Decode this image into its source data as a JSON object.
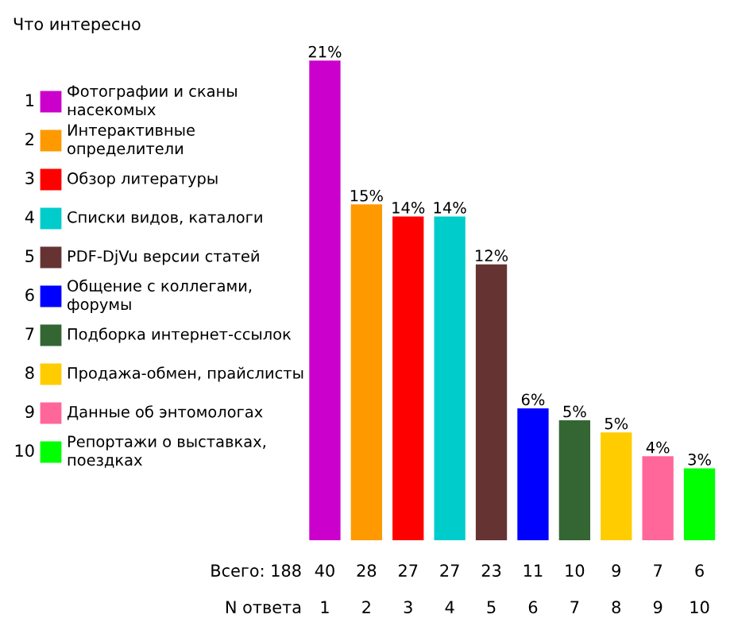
{
  "chart_data": {
    "type": "bar",
    "title": "Что интересно",
    "categories": [
      "1",
      "2",
      "3",
      "4",
      "5",
      "6",
      "7",
      "8",
      "9",
      "10"
    ],
    "series": [
      {
        "name": "Фотографии и сканы\nнасекомых",
        "color": "#cc00cc",
        "values": [
          40,
          null,
          null,
          null,
          null,
          null,
          null,
          null,
          null,
          null
        ]
      },
      {
        "name": "Интерактивные\nопределители",
        "color": "#ff9900",
        "values": [
          null,
          28,
          null,
          null,
          null,
          null,
          null,
          null,
          null,
          null
        ]
      },
      {
        "name": "Обзор литературы",
        "color": "#ff0000",
        "values": [
          null,
          null,
          27,
          null,
          null,
          null,
          null,
          null,
          null,
          null
        ]
      },
      {
        "name": "Списки видов, каталоги",
        "color": "#00cccc",
        "values": [
          null,
          null,
          null,
          27,
          null,
          null,
          null,
          null,
          null,
          null
        ]
      },
      {
        "name": "PDF-DjVu версии статей",
        "color": "#663333",
        "values": [
          null,
          null,
          null,
          null,
          23,
          null,
          null,
          null,
          null,
          null
        ]
      },
      {
        "name": "Общение с коллегами,\nфорумы",
        "color": "#0000ff",
        "values": [
          null,
          null,
          null,
          null,
          null,
          11,
          null,
          null,
          null,
          null
        ]
      },
      {
        "name": "Подборка интернет-ссылок",
        "color": "#336633",
        "values": [
          null,
          null,
          null,
          null,
          null,
          null,
          10,
          null,
          null,
          null
        ]
      },
      {
        "name": "Продажа-обмен, прайслисты",
        "color": "#ffcc00",
        "values": [
          null,
          null,
          null,
          null,
          null,
          null,
          null,
          9,
          null,
          null
        ]
      },
      {
        "name": "Данные об энтомологах",
        "color": "#ff6699",
        "values": [
          null,
          null,
          null,
          null,
          null,
          null,
          null,
          null,
          7,
          null
        ]
      },
      {
        "name": "Репортажи о выставках,\nпоездках",
        "color": "#00ff00",
        "values": [
          null,
          null,
          null,
          null,
          null,
          null,
          null,
          null,
          null,
          6
        ]
      }
    ],
    "value_labels": [
      "21%",
      "15%",
      "14%",
      "14%",
      "12%",
      "6%",
      "5%",
      "5%",
      "4%",
      "3%"
    ],
    "data_labels": true,
    "legend": "left",
    "annotations": [
      "Всего: 188",
      "N ответа"
    ]
  }
}
